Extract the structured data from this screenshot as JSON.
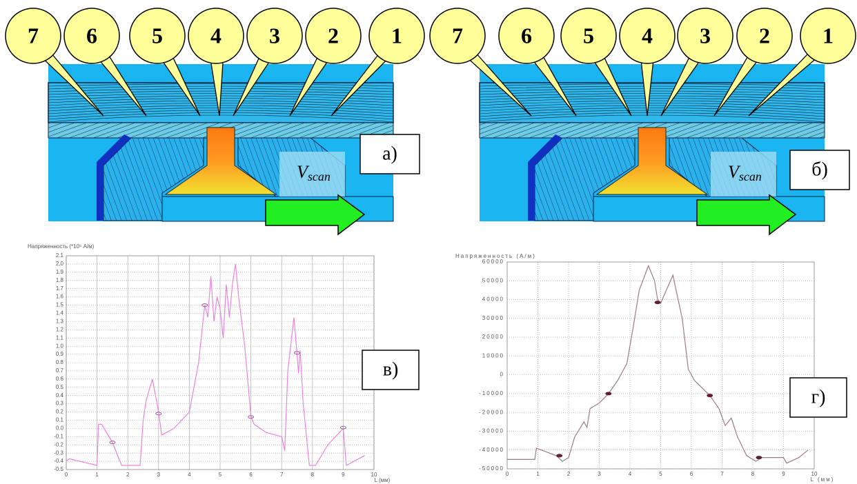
{
  "panels": [
    {
      "callouts": [
        "7",
        "6",
        "5",
        "4",
        "3",
        "2",
        "1"
      ],
      "label": "а)",
      "velocity": "V",
      "velocity_sub": "scan"
    },
    {
      "callouts": [
        "7",
        "6",
        "5",
        "4",
        "3",
        "2",
        "1"
      ],
      "label": "б)",
      "velocity": "V",
      "velocity_sub": "scan"
    }
  ],
  "chart_data": [
    {
      "type": "line",
      "title": "Напряженность (*10⁵ A/м)",
      "x_label": "L (мм)",
      "label": "в)",
      "color": "#f080e0",
      "grid": true,
      "x": [
        0,
        0.1,
        1.0,
        1.05,
        1.15,
        1.5,
        1.8,
        2.4,
        2.5,
        2.6,
        2.8,
        3.0,
        3.1,
        3.5,
        4.0,
        4.3,
        4.5,
        4.6,
        4.7,
        4.8,
        4.9,
        5.0,
        5.1,
        5.2,
        5.3,
        5.4,
        5.5,
        5.6,
        5.8,
        6.0,
        6.1,
        6.5,
        7.0,
        7.1,
        7.2,
        7.4,
        7.5,
        7.55,
        7.6,
        7.7,
        7.9,
        8.1,
        8.5,
        9.0,
        9.1,
        9.7
      ],
      "values": [
        -0.4,
        -0.37,
        -0.45,
        0.05,
        0.05,
        -0.17,
        -0.45,
        -0.45,
        0.1,
        0.35,
        0.6,
        0.2,
        -0.08,
        0.0,
        0.2,
        0.8,
        1.5,
        1.35,
        1.85,
        1.3,
        1.6,
        1.45,
        1.1,
        1.75,
        1.35,
        1.75,
        2.0,
        1.6,
        1.0,
        0.15,
        0.05,
        -0.05,
        -0.1,
        -0.27,
        0.7,
        1.35,
        0.9,
        0.67,
        0.95,
        0.3,
        -0.45,
        -0.45,
        -0.2,
        0.0,
        -0.45,
        -0.33
      ],
      "markers": {
        "x": [
          1.5,
          3.0,
          4.5,
          6.0,
          7.5,
          9.0
        ],
        "values": [
          -0.17,
          0.18,
          1.5,
          0.14,
          0.92,
          0.01
        ]
      },
      "xlim": [
        0,
        10
      ],
      "ylim": [
        -0.5,
        2.1
      ],
      "xticks": [
        0,
        1,
        2,
        3,
        4,
        5,
        6,
        7,
        8,
        9,
        10
      ],
      "yticks": [
        -0.5,
        -0.4,
        -0.3,
        -0.2,
        -0.1,
        {
          "value": 0,
          "label": "0.0"
        },
        0.1,
        0.2,
        0.3,
        0.4,
        0.5,
        0.6,
        0.7,
        0.8,
        0.9,
        {
          "value": 1,
          "label": "1.0"
        },
        1.1,
        1.2,
        1.3,
        1.4,
        1.5,
        1.6,
        1.7,
        1.8,
        1.9,
        {
          "value": 2,
          "label": "2.0"
        },
        2.1
      ]
    },
    {
      "type": "line",
      "title": "Напряженность (A/м)",
      "x_label": "L (мм)",
      "label": "г)",
      "color": "#a07888",
      "grid": true,
      "x": [
        0,
        0.9,
        0.95,
        1.6,
        1.8,
        2.0,
        2.2,
        2.5,
        2.6,
        2.7,
        3.0,
        3.3,
        3.6,
        3.9,
        4.1,
        4.3,
        4.6,
        4.8,
        4.9,
        5.0,
        5.1,
        5.4,
        5.5,
        5.7,
        5.9,
        6.1,
        6.6,
        6.9,
        7.1,
        7.3,
        7.5,
        7.8,
        8.1,
        8.3,
        9.0,
        9.1,
        9.5,
        9.8
      ],
      "values": [
        -45000,
        -45000,
        -39000,
        -43000,
        -46000,
        -44000,
        -33000,
        -25000,
        -28000,
        -18000,
        -15000,
        -10000,
        -3000,
        6000,
        25000,
        45000,
        58000,
        50000,
        40000,
        38000,
        42000,
        53000,
        45000,
        30000,
        3000,
        -3000,
        -11000,
        -18000,
        -27000,
        -23000,
        -33000,
        -43000,
        -46000,
        -44000,
        -44000,
        -47000,
        -44000,
        -40000
      ],
      "markers": {
        "x": [
          1.7,
          3.3,
          4.9,
          6.6,
          8.2
        ],
        "values": [
          -43000,
          -10000,
          38500,
          -11000,
          -44000
        ]
      },
      "xlim": [
        0,
        10
      ],
      "ylim": [
        -50000,
        60000
      ],
      "xticks": [
        0,
        1,
        2,
        3,
        4,
        5,
        6,
        7,
        8,
        9,
        10
      ],
      "yticks": [
        -50000,
        -40000,
        -30000,
        -20000,
        -10000,
        0,
        10000,
        20000,
        30000,
        40000,
        50000,
        60000
      ]
    }
  ]
}
